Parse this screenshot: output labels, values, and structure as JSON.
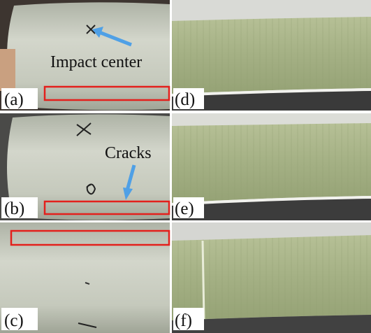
{
  "panels": [
    {
      "label": "(a)",
      "annotation": "Impact center"
    },
    {
      "label": "(b)",
      "annotation": "Cracks"
    },
    {
      "label": "(c)"
    },
    {
      "label": "(d)"
    },
    {
      "label": "(e)"
    },
    {
      "label": "(f)"
    }
  ]
}
